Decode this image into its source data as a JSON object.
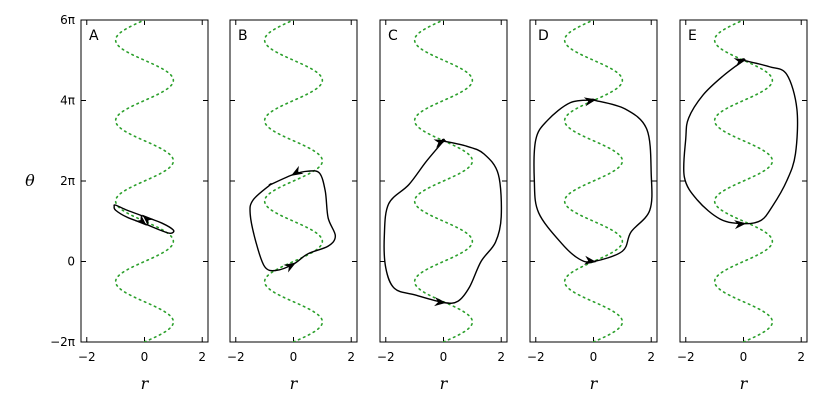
{
  "chart_data": {
    "type": "line",
    "ylabel": "θ",
    "yticks": [
      {
        "value": -6.2832,
        "label": "−2π"
      },
      {
        "value": 0,
        "label": "0"
      },
      {
        "value": 6.2832,
        "label": "2π"
      },
      {
        "value": 12.5664,
        "label": "4π"
      },
      {
        "value": 18.8496,
        "label": "6π"
      }
    ],
    "ylim": [
      -6.2832,
      18.8496
    ],
    "xlim": [
      -2.2,
      2.2
    ],
    "xticks": [
      {
        "value": -2,
        "label": "−2"
      },
      {
        "value": 0,
        "label": "0"
      },
      {
        "value": 2,
        "label": "2"
      }
    ],
    "colors": {
      "dotted": "#2ca02c",
      "loop": "#000000"
    },
    "panels": [
      {
        "label": "A",
        "xlabel": "r",
        "dotted_curve": {
          "amplitude": 1.0,
          "phase_offset": 0
        },
        "loop": [
          [
            -1.0,
            4.4
          ],
          [
            -0.6,
            4.0
          ],
          [
            0.0,
            3.5
          ],
          [
            0.6,
            3.0
          ],
          [
            1.0,
            2.45
          ],
          [
            0.9,
            2.2
          ],
          [
            0.6,
            2.4
          ],
          [
            0.0,
            2.95
          ],
          [
            -0.6,
            3.45
          ],
          [
            -1.0,
            4.0
          ],
          [
            -1.05,
            4.3
          ]
        ],
        "arrows": [
          [
            0.0,
            3.5,
            -1,
            0.9
          ],
          [
            0.0,
            2.95,
            1,
            -0.9
          ]
        ]
      },
      {
        "label": "B",
        "xlabel": "r",
        "dotted_curve": {
          "amplitude": 1.0,
          "phase_offset": 0
        },
        "loop": [
          [
            -0.8,
            6.0
          ],
          [
            0.0,
            6.8
          ],
          [
            0.5,
            7.05
          ],
          [
            0.9,
            6.9
          ],
          [
            1.1,
            5.5
          ],
          [
            1.2,
            3.4
          ],
          [
            1.45,
            2.0
          ],
          [
            1.2,
            1.2
          ],
          [
            0.5,
            0.6
          ],
          [
            0.0,
            -0.2
          ],
          [
            -0.6,
            -0.7
          ],
          [
            -1.0,
            -0.4
          ],
          [
            -1.3,
            1.5
          ],
          [
            -1.5,
            3.7
          ],
          [
            -1.4,
            4.8
          ],
          [
            -0.8,
            6.0
          ]
        ],
        "arrows": [
          [
            0.0,
            6.8,
            -1,
            -0.6
          ],
          [
            0.0,
            -0.2,
            1,
            0.6
          ]
        ]
      },
      {
        "label": "C",
        "xlabel": "r",
        "dotted_curve": {
          "amplitude": 1.0,
          "phase_offset": 0
        },
        "loop": [
          [
            0.0,
            9.4
          ],
          [
            0.8,
            9.0
          ],
          [
            1.4,
            8.4
          ],
          [
            1.9,
            6.8
          ],
          [
            2.0,
            3.5
          ],
          [
            1.8,
            1.5
          ],
          [
            1.3,
            0.0
          ],
          [
            0.9,
            -2.0
          ],
          [
            0.5,
            -3.1
          ],
          [
            0.0,
            -3.2
          ],
          [
            -1.0,
            -2.6
          ],
          [
            -1.7,
            -2.1
          ],
          [
            -2.0,
            -0.5
          ],
          [
            -2.05,
            2.0
          ],
          [
            -1.9,
            4.5
          ],
          [
            -1.2,
            6.0
          ],
          [
            -0.6,
            7.8
          ],
          [
            0.0,
            9.4
          ]
        ],
        "arrows": [
          [
            0.0,
            9.4,
            1,
            0.3
          ],
          [
            0.0,
            -3.2,
            1,
            -0.1
          ]
        ]
      },
      {
        "label": "D",
        "xlabel": "r",
        "dotted_curve": {
          "amplitude": 1.0,
          "phase_offset": 0
        },
        "loop": [
          [
            0.0,
            12.6
          ],
          [
            1.1,
            11.9
          ],
          [
            1.85,
            10.3
          ],
          [
            2.0,
            6.8
          ],
          [
            1.95,
            4.0
          ],
          [
            1.3,
            2.3
          ],
          [
            1.0,
            0.8
          ],
          [
            0.0,
            0.0
          ],
          [
            -0.5,
            0.2
          ],
          [
            -1.1,
            1.4
          ],
          [
            -1.9,
            3.8
          ],
          [
            -2.05,
            6.3
          ],
          [
            -2.0,
            9.5
          ],
          [
            -1.6,
            11.0
          ],
          [
            -0.8,
            12.4
          ],
          [
            0.0,
            12.6
          ]
        ],
        "arrows": [
          [
            0.0,
            12.6,
            1,
            0.2
          ],
          [
            0.0,
            0.0,
            1,
            -0.15
          ]
        ]
      },
      {
        "label": "E",
        "xlabel": "r",
        "dotted_curve": {
          "amplitude": 1.0,
          "phase_offset": 0
        },
        "loop": [
          [
            0.0,
            15.7
          ],
          [
            0.9,
            15.2
          ],
          [
            1.5,
            14.6
          ],
          [
            1.85,
            11.9
          ],
          [
            1.8,
            8.4
          ],
          [
            1.5,
            6.3
          ],
          [
            1.0,
            4.3
          ],
          [
            0.6,
            3.2
          ],
          [
            0.0,
            2.95
          ],
          [
            -0.8,
            3.3
          ],
          [
            -1.6,
            4.8
          ],
          [
            -2.05,
            6.6
          ],
          [
            -2.0,
            9.6
          ],
          [
            -1.9,
            11.2
          ],
          [
            -1.4,
            13.0
          ],
          [
            -0.7,
            14.5
          ],
          [
            0.0,
            15.7
          ]
        ],
        "arrows": [
          [
            0.0,
            15.7,
            1,
            0.25
          ],
          [
            0.0,
            2.95,
            1,
            0.1
          ]
        ]
      }
    ]
  }
}
